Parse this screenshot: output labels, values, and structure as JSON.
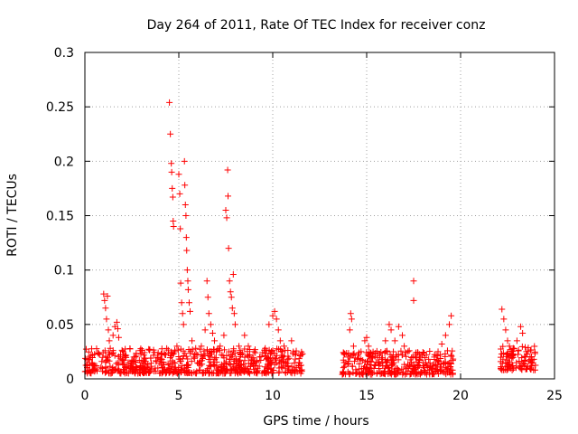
{
  "chart_data": {
    "type": "scatter",
    "title": "Day 264 of 2011, Rate Of TEC Index for receiver conz",
    "xlabel": "GPS time / hours",
    "ylabel": "ROTI / TECUs",
    "xlim": [
      0,
      25
    ],
    "ylim": [
      0,
      0.3
    ],
    "x_ticks": [
      0,
      5,
      10,
      15,
      20,
      25
    ],
    "x_tick_labels": [
      "0",
      "5",
      "10",
      "15",
      "20",
      "25"
    ],
    "y_ticks": [
      0,
      0.05,
      0.1,
      0.15,
      0.2,
      0.25,
      0.3
    ],
    "y_tick_labels": [
      "0",
      "0.05",
      "0.1",
      "0.15",
      "0.2",
      "0.25",
      "0.3"
    ],
    "grid": true,
    "marker": "plus",
    "color": "#ff0000",
    "series": [
      {
        "name": "ROTI",
        "points": [
          [
            0.1,
            0.018
          ],
          [
            0.3,
            0.021
          ],
          [
            0.5,
            0.012
          ],
          [
            0.7,
            0.024
          ],
          [
            0.9,
            0.016
          ],
          [
            1.0,
            0.078
          ],
          [
            1.05,
            0.072
          ],
          [
            1.1,
            0.065
          ],
          [
            1.15,
            0.055
          ],
          [
            1.2,
            0.076
          ],
          [
            1.25,
            0.045
          ],
          [
            1.3,
            0.035
          ],
          [
            1.35,
            0.028
          ],
          [
            1.5,
            0.04
          ],
          [
            1.6,
            0.048
          ],
          [
            1.7,
            0.052
          ],
          [
            1.75,
            0.046
          ],
          [
            1.8,
            0.038
          ],
          [
            1.9,
            0.022
          ],
          [
            2.0,
            0.018
          ],
          [
            2.3,
            0.015
          ],
          [
            2.6,
            0.02
          ],
          [
            2.9,
            0.017
          ],
          [
            3.2,
            0.014
          ],
          [
            3.5,
            0.019
          ],
          [
            3.8,
            0.016
          ],
          [
            3.9,
            0.024
          ],
          [
            4.1,
            0.018
          ],
          [
            4.3,
            0.022
          ],
          [
            4.5,
            0.254
          ],
          [
            4.55,
            0.225
          ],
          [
            4.6,
            0.198
          ],
          [
            4.62,
            0.19
          ],
          [
            4.65,
            0.175
          ],
          [
            4.68,
            0.167
          ],
          [
            4.7,
            0.145
          ],
          [
            4.72,
            0.14
          ],
          [
            4.8,
            0.025
          ],
          [
            4.9,
            0.03
          ],
          [
            5.0,
            0.188
          ],
          [
            5.05,
            0.17
          ],
          [
            5.08,
            0.138
          ],
          [
            5.1,
            0.088
          ],
          [
            5.15,
            0.07
          ],
          [
            5.2,
            0.06
          ],
          [
            5.25,
            0.05
          ],
          [
            5.3,
            0.2
          ],
          [
            5.32,
            0.178
          ],
          [
            5.35,
            0.16
          ],
          [
            5.38,
            0.15
          ],
          [
            5.4,
            0.13
          ],
          [
            5.42,
            0.118
          ],
          [
            5.45,
            0.1
          ],
          [
            5.48,
            0.09
          ],
          [
            5.5,
            0.082
          ],
          [
            5.55,
            0.07
          ],
          [
            5.6,
            0.062
          ],
          [
            5.7,
            0.035
          ],
          [
            5.8,
            0.02
          ],
          [
            5.9,
            0.028
          ],
          [
            6.0,
            0.022
          ],
          [
            6.2,
            0.03
          ],
          [
            6.4,
            0.045
          ],
          [
            6.5,
            0.09
          ],
          [
            6.55,
            0.075
          ],
          [
            6.6,
            0.06
          ],
          [
            6.7,
            0.05
          ],
          [
            6.8,
            0.042
          ],
          [
            6.9,
            0.035
          ],
          [
            7.0,
            0.025
          ],
          [
            7.2,
            0.03
          ],
          [
            7.4,
            0.04
          ],
          [
            7.5,
            0.155
          ],
          [
            7.55,
            0.148
          ],
          [
            7.6,
            0.192
          ],
          [
            7.62,
            0.168
          ],
          [
            7.65,
            0.12
          ],
          [
            7.7,
            0.09
          ],
          [
            7.75,
            0.08
          ],
          [
            7.8,
            0.075
          ],
          [
            7.85,
            0.065
          ],
          [
            7.9,
            0.096
          ],
          [
            7.95,
            0.06
          ],
          [
            8.0,
            0.05
          ],
          [
            8.2,
            0.03
          ],
          [
            8.5,
            0.04
          ],
          [
            8.7,
            0.03
          ],
          [
            9.0,
            0.025
          ],
          [
            9.3,
            0.02
          ],
          [
            9.6,
            0.028
          ],
          [
            9.8,
            0.05
          ],
          [
            10.0,
            0.058
          ],
          [
            10.1,
            0.062
          ],
          [
            10.2,
            0.055
          ],
          [
            10.3,
            0.045
          ],
          [
            10.4,
            0.035
          ],
          [
            10.5,
            0.025
          ],
          [
            10.6,
            0.03
          ],
          [
            10.8,
            0.018
          ],
          [
            11.0,
            0.035
          ],
          [
            11.2,
            0.022
          ],
          [
            11.4,
            0.015
          ],
          [
            13.8,
            0.015
          ],
          [
            14.0,
            0.02
          ],
          [
            14.1,
            0.045
          ],
          [
            14.15,
            0.06
          ],
          [
            14.2,
            0.055
          ],
          [
            14.3,
            0.03
          ],
          [
            14.5,
            0.018
          ],
          [
            14.7,
            0.025
          ],
          [
            14.9,
            0.035
          ],
          [
            15.0,
            0.038
          ],
          [
            15.1,
            0.03
          ],
          [
            15.3,
            0.02
          ],
          [
            15.6,
            0.015
          ],
          [
            15.8,
            0.018
          ],
          [
            16.0,
            0.035
          ],
          [
            16.2,
            0.05
          ],
          [
            16.3,
            0.045
          ],
          [
            16.5,
            0.035
          ],
          [
            16.7,
            0.048
          ],
          [
            16.9,
            0.04
          ],
          [
            17.0,
            0.03
          ],
          [
            17.2,
            0.025
          ],
          [
            17.5,
            0.09
          ],
          [
            17.5,
            0.072
          ],
          [
            17.6,
            0.02
          ],
          [
            17.8,
            0.012
          ],
          [
            18.0,
            0.015
          ],
          [
            18.3,
            0.018
          ],
          [
            18.6,
            0.02
          ],
          [
            18.8,
            0.025
          ],
          [
            19.0,
            0.032
          ],
          [
            19.2,
            0.04
          ],
          [
            19.4,
            0.05
          ],
          [
            19.5,
            0.058
          ],
          [
            22.2,
            0.064
          ],
          [
            22.3,
            0.055
          ],
          [
            22.4,
            0.045
          ],
          [
            22.5,
            0.035
          ],
          [
            22.6,
            0.03
          ],
          [
            22.8,
            0.028
          ],
          [
            23.0,
            0.035
          ],
          [
            23.2,
            0.048
          ],
          [
            23.3,
            0.042
          ],
          [
            23.5,
            0.025
          ],
          [
            23.7,
            0.02
          ],
          [
            23.9,
            0.018
          ]
        ],
        "bands": [
          [
            0.0,
            11.6,
            0.005,
            0.028
          ],
          [
            13.7,
            19.6,
            0.004,
            0.026
          ],
          [
            22.1,
            24.0,
            0.008,
            0.03
          ]
        ]
      }
    ]
  }
}
